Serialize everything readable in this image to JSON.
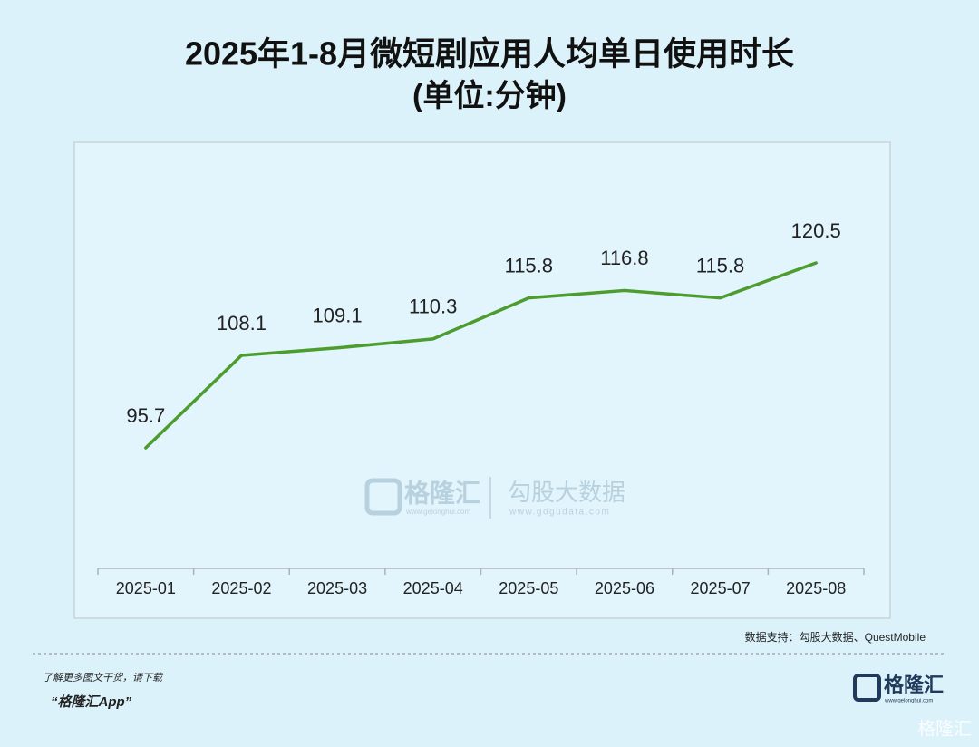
{
  "chart_data": {
    "type": "line",
    "title": "2025年1-8月微短剧应用人均单日使用时长",
    "subtitle": "(单位:分钟)",
    "categories": [
      "2025-01",
      "2025-02",
      "2025-03",
      "2025-04",
      "2025-05",
      "2025-06",
      "2025-07",
      "2025-08"
    ],
    "values": [
      95.7,
      108.1,
      109.1,
      110.3,
      115.8,
      116.8,
      115.8,
      120.5
    ],
    "color": "#4c9c2e",
    "grid": false,
    "source": "数据支持：勾股大数据、QuestMobile"
  },
  "watermark": {
    "brand": "格隆汇",
    "brand_url": "www.gelonghui.com",
    "partner": "勾股大数据",
    "partner_url": "www.gogudata.com"
  },
  "footer": {
    "line1": "了解更多图文干货，请下载",
    "line2": "“格隆汇App”",
    "logo": "格隆汇",
    "logo_url": "www.gelonghui.com",
    "corner": "格隆汇"
  }
}
